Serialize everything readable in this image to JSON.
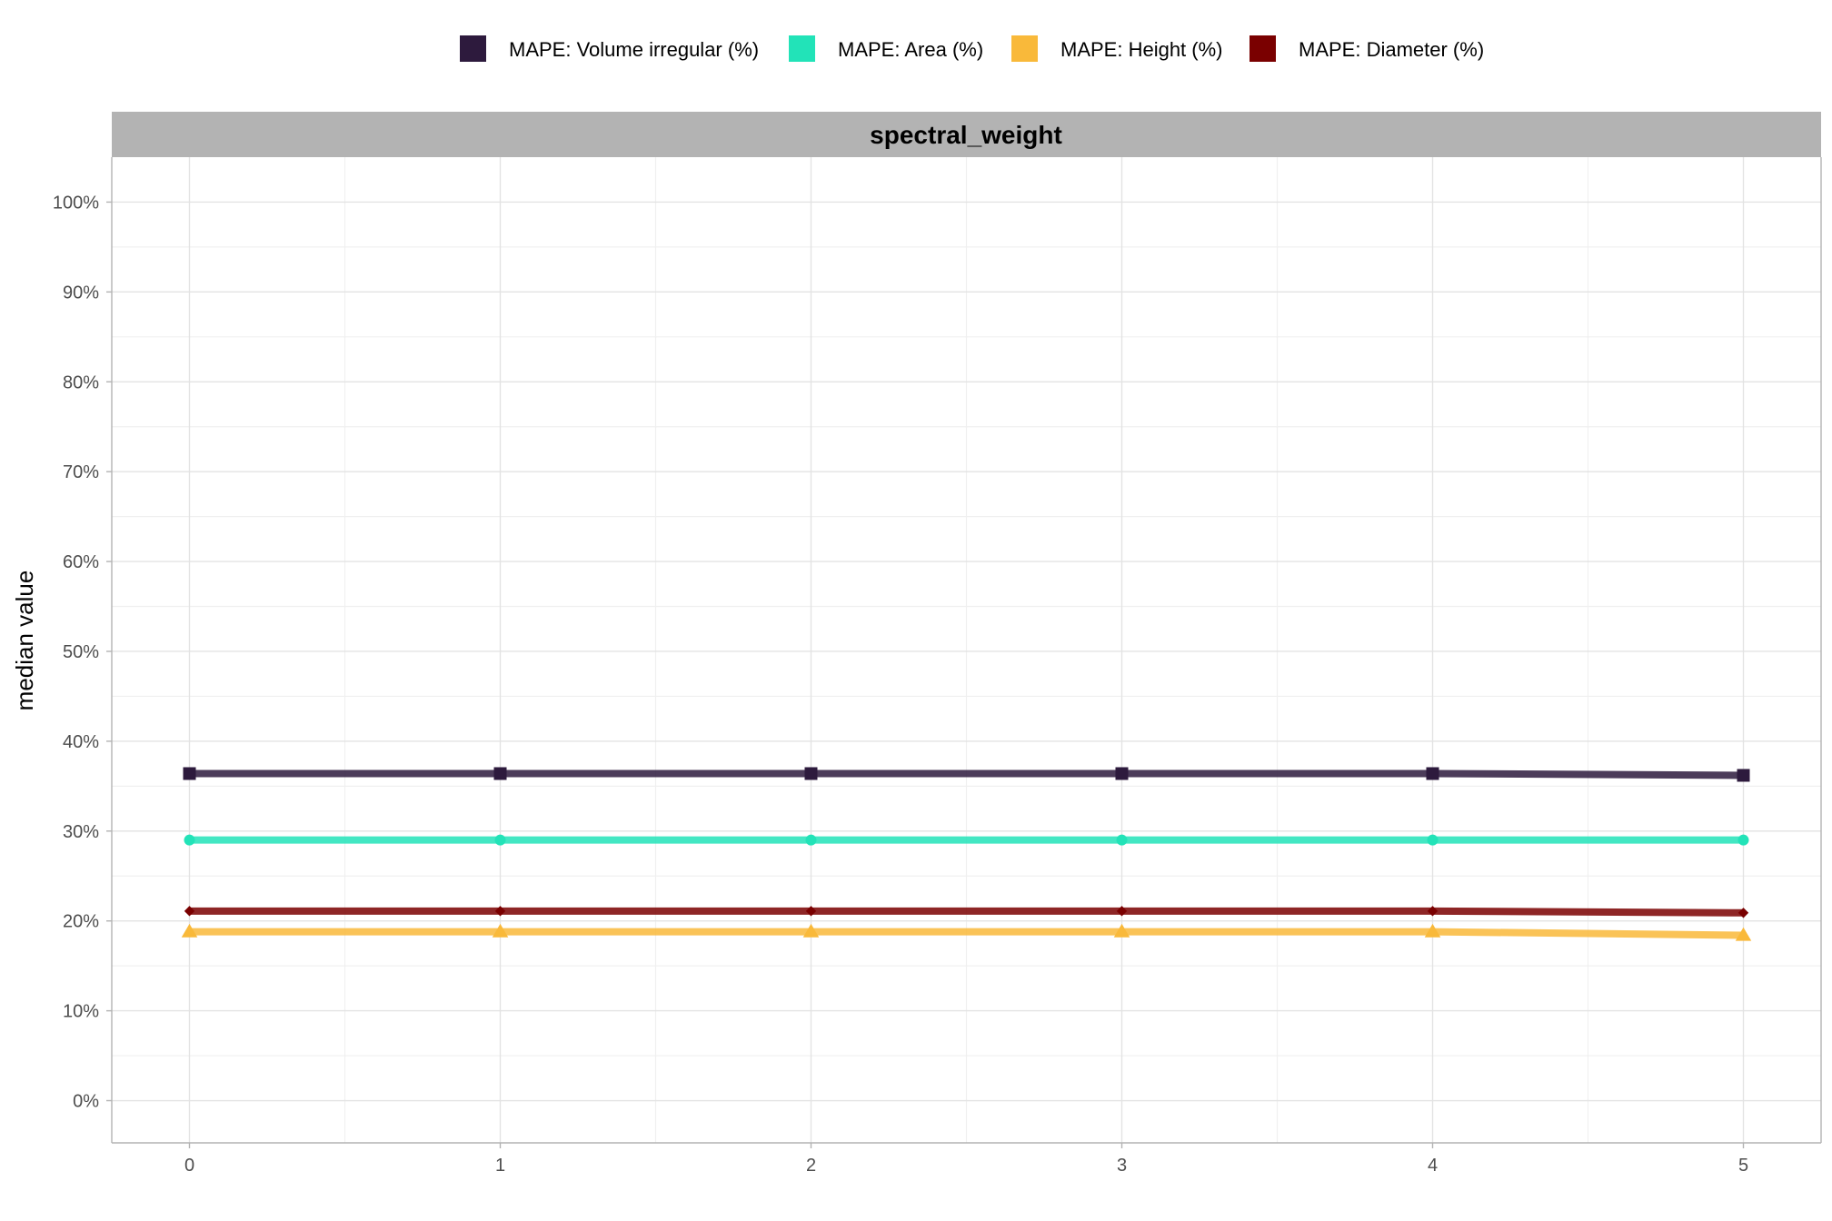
{
  "chart_data": {
    "type": "line",
    "facet_title": "spectral_weight",
    "xlabel": "",
    "ylabel": "median value",
    "x": [
      0,
      1,
      2,
      3,
      4,
      5
    ],
    "x_ticks": [
      "0",
      "1",
      "2",
      "3",
      "4",
      "5"
    ],
    "xlim": [
      -0.25,
      5.25
    ],
    "ylim": [
      -0.047,
      1.05
    ],
    "y_ticks": [
      "0%",
      "10%",
      "20%",
      "30%",
      "40%",
      "50%",
      "60%",
      "70%",
      "80%",
      "90%",
      "100%"
    ],
    "grid": true,
    "legend_position": "top",
    "series": [
      {
        "name": "MAPE: Volume irregular (%)",
        "color": "#2d1a3d",
        "marker": "square",
        "values": [
          0.364,
          0.364,
          0.364,
          0.364,
          0.364,
          0.362
        ]
      },
      {
        "name": "MAPE: Area (%)",
        "color": "#22e3b8",
        "marker": "circle",
        "values": [
          0.29,
          0.29,
          0.29,
          0.29,
          0.29,
          0.29
        ]
      },
      {
        "name": "MAPE: Height (%)",
        "color": "#f9b93a",
        "marker": "triangle",
        "values": [
          0.188,
          0.188,
          0.188,
          0.188,
          0.188,
          0.184
        ]
      },
      {
        "name": "MAPE: Diameter (%)",
        "color": "#7a0000",
        "marker": "diamond",
        "values": [
          0.211,
          0.211,
          0.211,
          0.211,
          0.211,
          0.209
        ]
      }
    ]
  }
}
